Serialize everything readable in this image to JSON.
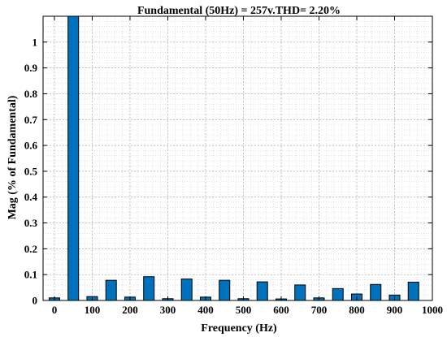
{
  "chart_data": {
    "type": "bar",
    "title": "Fundamental (50Hz) = 257v.THD= 2.20%",
    "xlabel": "Frequency (Hz)",
    "ylabel": "Mag (% of Fundamental)",
    "xlim": [
      -30,
      1000
    ],
    "ylim": [
      0,
      1.1
    ],
    "x": [
      0,
      50,
      100,
      150,
      200,
      250,
      300,
      350,
      400,
      450,
      500,
      550,
      600,
      650,
      700,
      750,
      800,
      850,
      900,
      950
    ],
    "values": [
      0.01,
      1.1,
      0.015,
      0.078,
      0.013,
      0.092,
      0.007,
      0.083,
      0.013,
      0.078,
      0.007,
      0.072,
      0.006,
      0.06,
      0.01,
      0.046,
      0.025,
      0.062,
      0.021,
      0.071
    ],
    "xticks": [
      0,
      100,
      200,
      300,
      400,
      500,
      600,
      700,
      800,
      900,
      1000
    ],
    "yticks": [
      0,
      0.1,
      0.2,
      0.3,
      0.4,
      0.5,
      0.6,
      0.7,
      0.8,
      0.9,
      1
    ],
    "ytick_labels": [
      "0",
      "0.1",
      "0.2",
      "0.3",
      "0.4",
      "0.5",
      "0.6",
      "0.7",
      "0.8",
      "0.9",
      "1"
    ],
    "bar_color": "#0072BD",
    "grid": true,
    "minor_grid": true
  }
}
